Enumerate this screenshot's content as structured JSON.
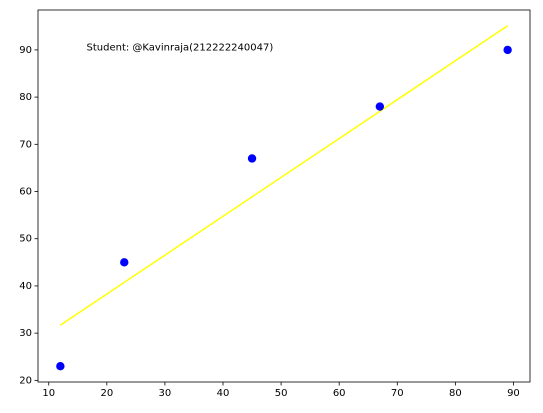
{
  "chart_data": {
    "type": "scatter",
    "title": "",
    "xlabel": "",
    "ylabel": "",
    "xlim": [
      8.15,
      92.85
    ],
    "ylim": [
      19.65,
      98.45
    ],
    "x_ticks": [
      10,
      20,
      30,
      40,
      50,
      60,
      70,
      80,
      90
    ],
    "y_ticks": [
      20,
      30,
      40,
      50,
      60,
      70,
      80,
      90
    ],
    "grid": false,
    "legend": "none",
    "series": [
      {
        "kind": "scatter",
        "color": "#0000ff",
        "x": [
          12,
          23,
          45,
          67,
          89
        ],
        "y": [
          23,
          45,
          67,
          78,
          90
        ]
      },
      {
        "kind": "line",
        "color": "#ffff00",
        "x": [
          12,
          89
        ],
        "y": [
          31.7,
          95.1
        ]
      }
    ],
    "annotations": [
      {
        "text": "Student: @Kavinraja(212222240047)",
        "x": 16.5,
        "y": 90.5
      }
    ]
  }
}
